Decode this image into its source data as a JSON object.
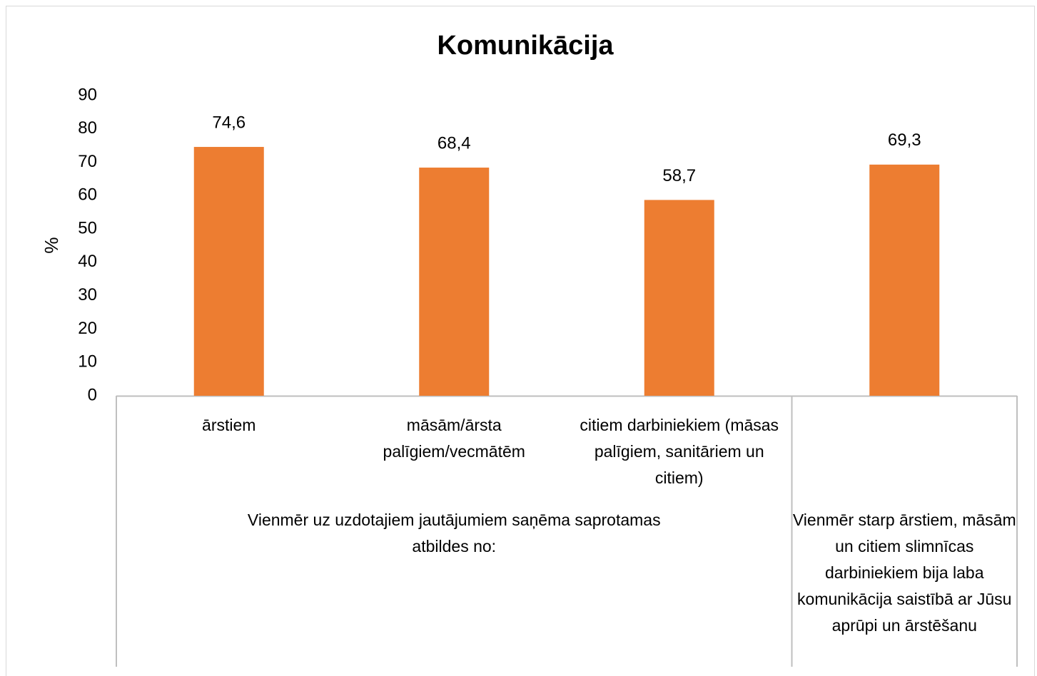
{
  "chart_data": {
    "type": "bar",
    "title": "Komunikācija",
    "y_label": "%",
    "groups": [
      {
        "label": "Vienmēr uz uzdotajiem jautājumiem saņēma saprotamas atbildes no:",
        "categories": [
          "ārstiem",
          "māsām/ārsta palīgiem/vecmātēm",
          "citiem darbiniekiem (māsas palīgiem, sanitāriem un citiem)"
        ]
      },
      {
        "label": "Vienmēr starp ārstiem, māsām un citiem slimnīcas darbiniekiem bija laba komunikācija saistībā ar Jūsu aprūpi un ārstēšanu",
        "categories": [
          null
        ]
      }
    ],
    "values": [
      74.6,
      68.4,
      58.7,
      69.3
    ],
    "value_labels": [
      "74,6",
      "68,4",
      "58,7",
      "69,3"
    ],
    "color": "#ed7d31",
    "ylim": [
      0,
      90
    ],
    "yticks": [
      0,
      10,
      20,
      30,
      40,
      50,
      60,
      70,
      80,
      90
    ],
    "grid": false
  }
}
